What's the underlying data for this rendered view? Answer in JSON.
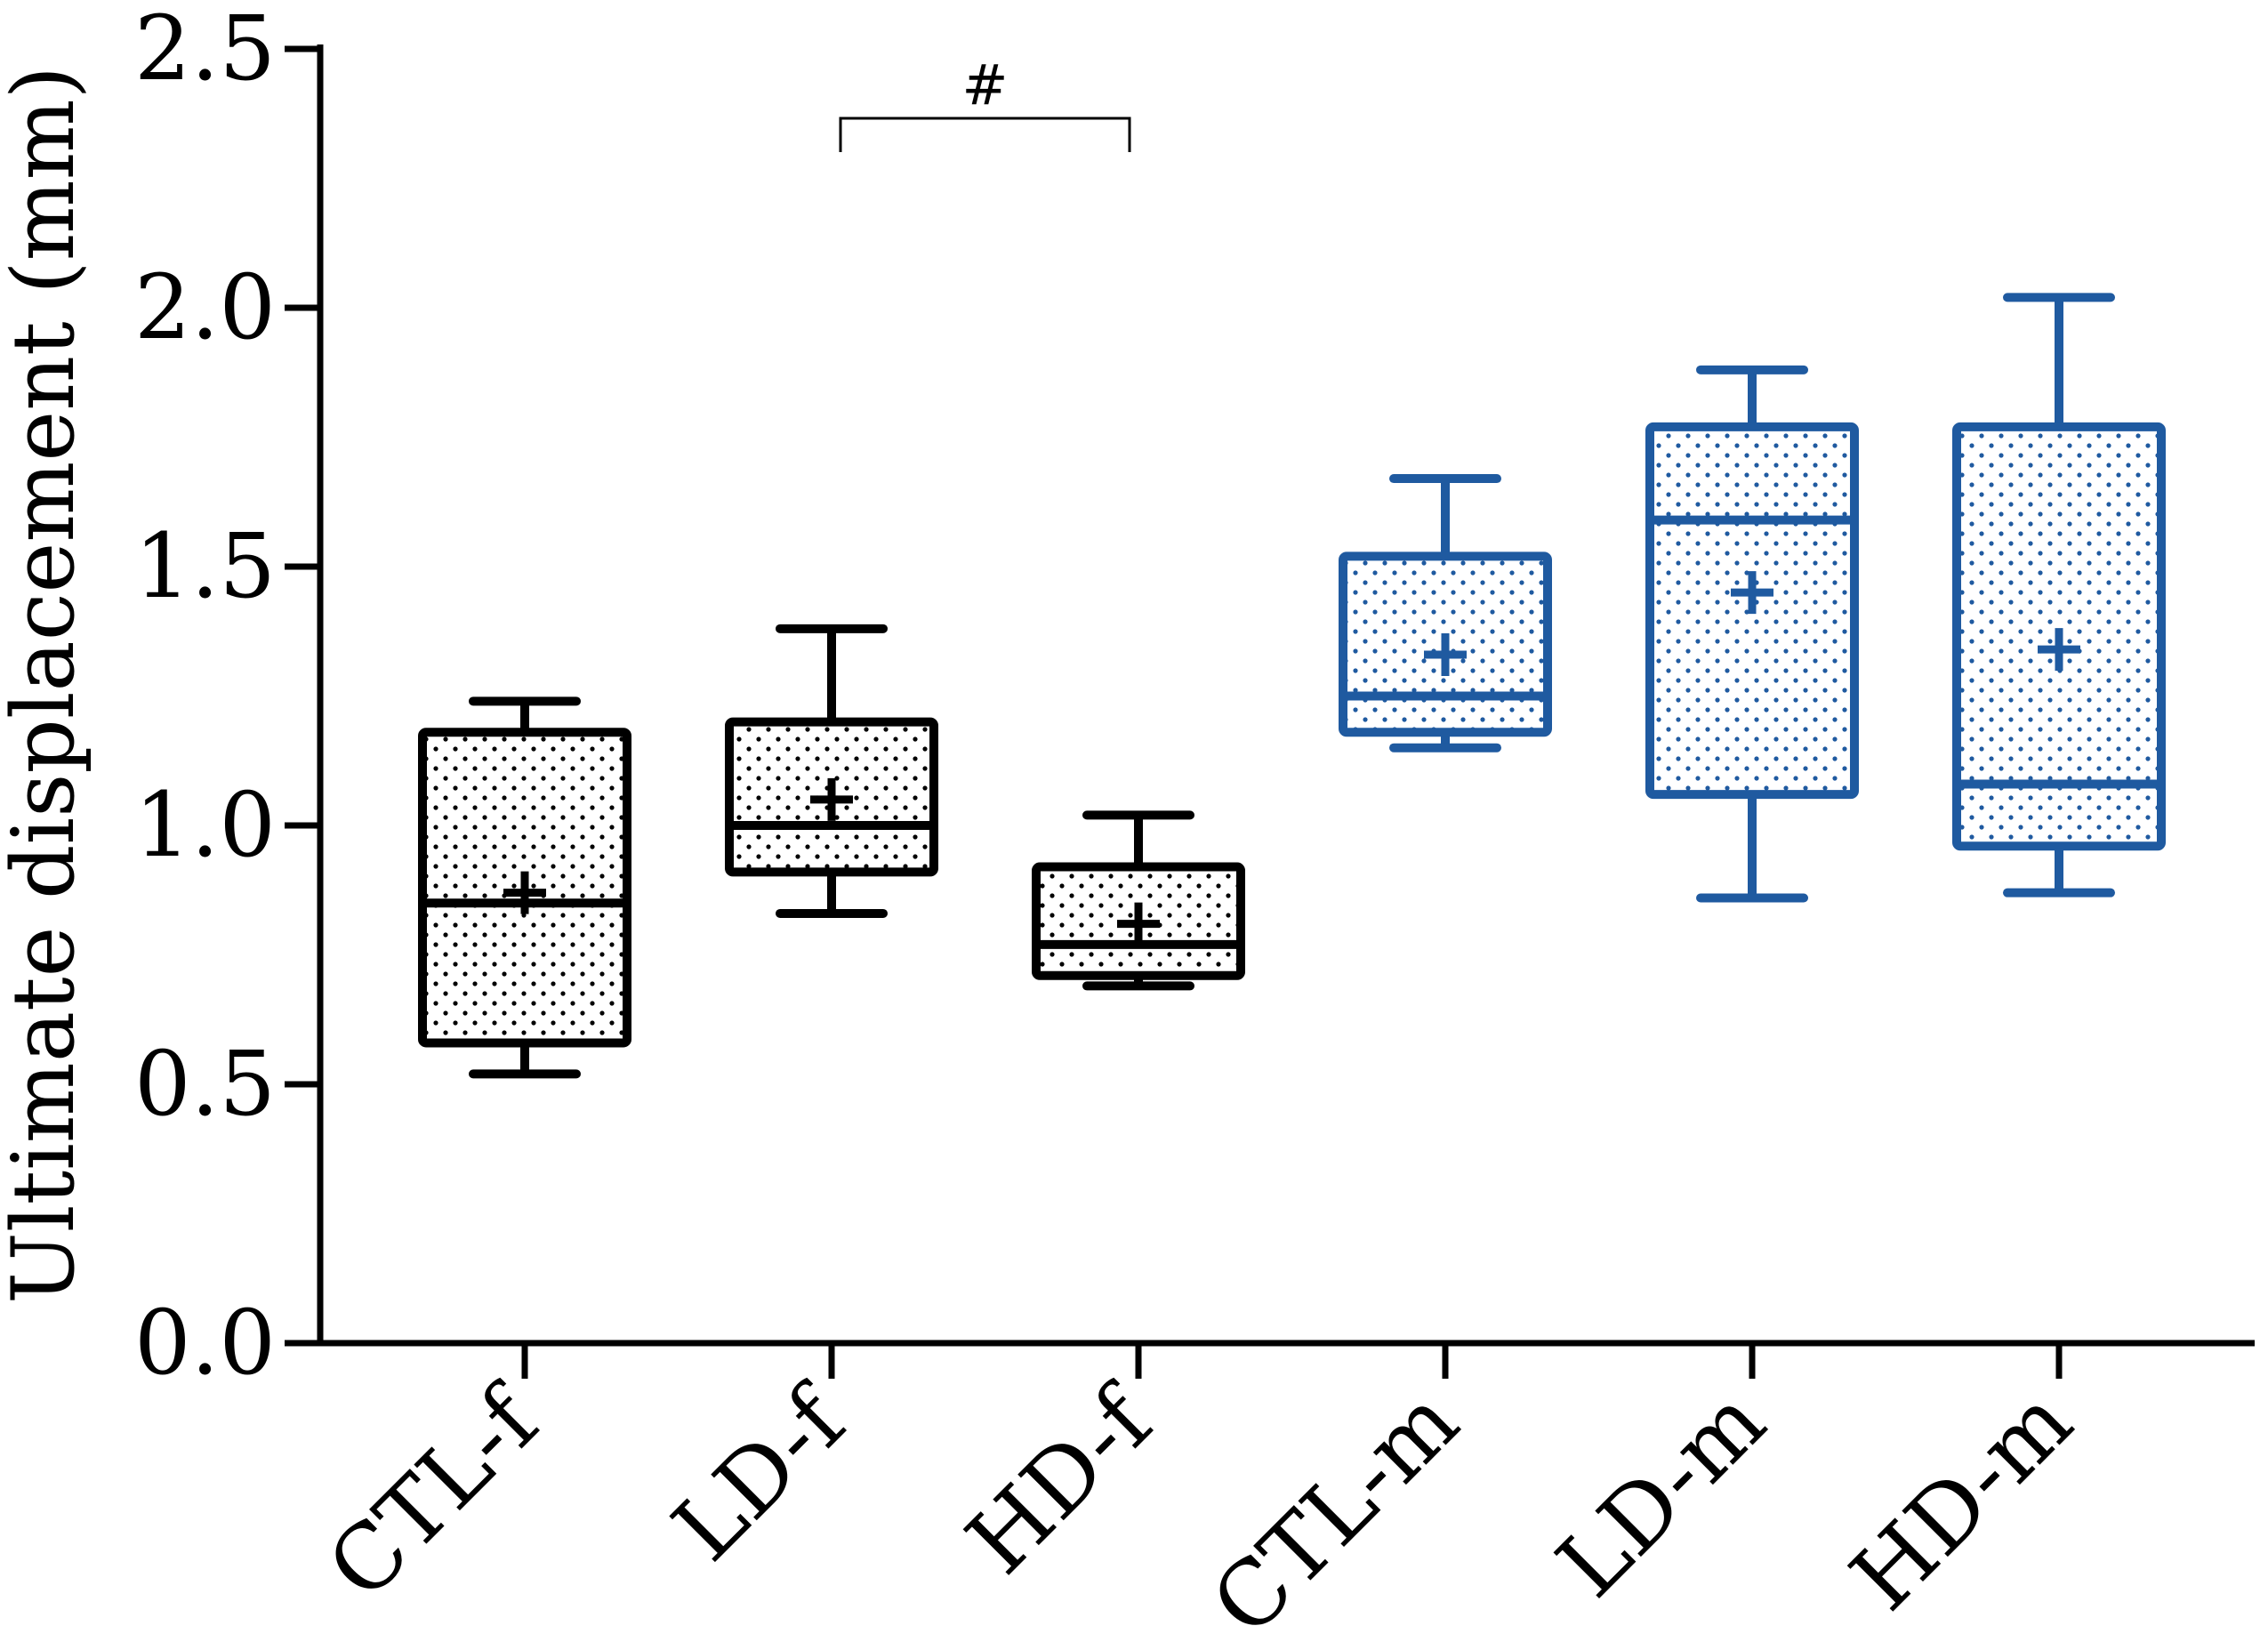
{
  "chart_data": {
    "type": "boxplot",
    "title": "",
    "xlabel": "",
    "ylabel": "Ultimate displacement (mm)",
    "ylim": [
      0,
      2.5
    ],
    "yticks": [
      "0.0",
      "0.5",
      "1.0",
      "1.5",
      "2.0",
      "2.5"
    ],
    "categories": [
      "CTL-f",
      "LD-f",
      "HD-f",
      "CTL-m",
      "LD-m",
      "HD-m"
    ],
    "boxes": [
      {
        "category": "CTL-f",
        "min": 0.52,
        "q1": 0.58,
        "median": 0.85,
        "q3": 1.18,
        "max": 1.24,
        "mean": 0.87,
        "color": "#000000"
      },
      {
        "category": "LD-f",
        "min": 0.83,
        "q1": 0.91,
        "median": 1.0,
        "q3": 1.2,
        "max": 1.38,
        "mean": 1.05,
        "color": "#000000"
      },
      {
        "category": "HD-f",
        "min": 0.69,
        "q1": 0.71,
        "median": 0.77,
        "q3": 0.92,
        "max": 1.02,
        "mean": 0.81,
        "color": "#000000"
      },
      {
        "category": "CTL-m",
        "min": 1.15,
        "q1": 1.18,
        "median": 1.25,
        "q3": 1.52,
        "max": 1.67,
        "mean": 1.33,
        "color": "#1f5aa0"
      },
      {
        "category": "LD-m",
        "min": 0.86,
        "q1": 1.06,
        "median": 1.59,
        "q3": 1.77,
        "max": 1.88,
        "mean": 1.45,
        "color": "#1f5aa0"
      },
      {
        "category": "HD-m",
        "min": 0.87,
        "q1": 0.96,
        "median": 1.08,
        "q3": 1.77,
        "max": 2.02,
        "mean": 1.34,
        "color": "#1f5aa0"
      }
    ],
    "annotations": [
      {
        "label": "#",
        "from": "LD-f",
        "to": "HD-f",
        "y": 2.28
      }
    ]
  }
}
